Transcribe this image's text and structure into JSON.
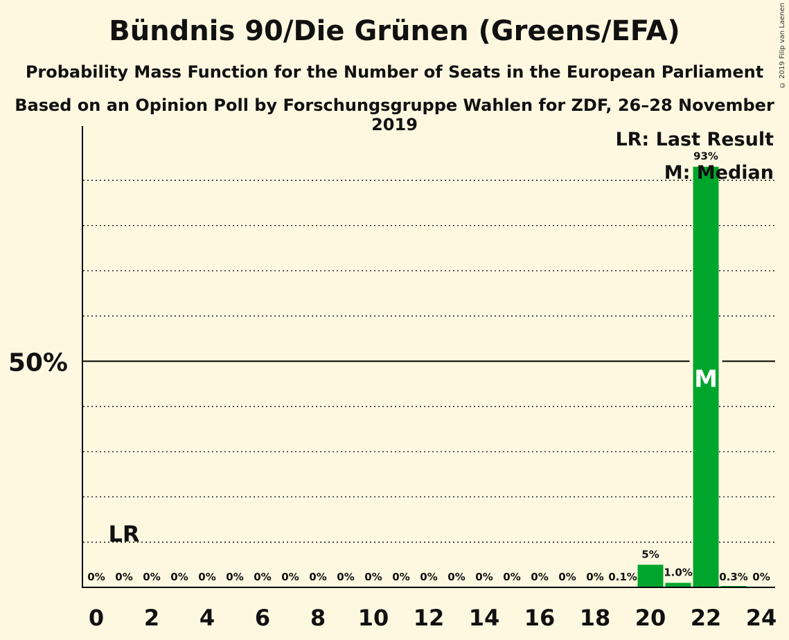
{
  "title": "Bündnis 90/Die Grünen (Greens/EFA)",
  "subtitle": "Probability Mass Function for the Number of Seats in the European Parliament",
  "subtitle2": "Based on an Opinion Poll by Forschungsgruppe Wahlen for ZDF, 26–28 November 2019",
  "copyright": "© 2019 Filip van Laenen",
  "legend": {
    "last_result": "LR: Last Result",
    "median": "M: Median"
  },
  "colors": {
    "bar": "#00a62c",
    "background": "#fff8e1",
    "axis": "#000000"
  },
  "chart_data": {
    "type": "bar",
    "x": [
      0,
      1,
      2,
      3,
      4,
      5,
      6,
      7,
      8,
      9,
      10,
      11,
      12,
      13,
      14,
      15,
      16,
      17,
      18,
      19,
      20,
      21,
      22,
      23,
      24
    ],
    "values": [
      0,
      0,
      0,
      0,
      0,
      0,
      0,
      0,
      0,
      0,
      0,
      0,
      0,
      0,
      0,
      0,
      0,
      0,
      0,
      0.1,
      5,
      1.0,
      93,
      0.3,
      0
    ],
    "labels": [
      "0%",
      "0%",
      "0%",
      "0%",
      "0%",
      "0%",
      "0%",
      "0%",
      "0%",
      "0%",
      "0%",
      "0%",
      "0%",
      "0%",
      "0%",
      "0%",
      "0%",
      "0%",
      "0%",
      "0.1%",
      "5%",
      "1.0%",
      "93%",
      "0.3%",
      "0%"
    ],
    "x_ticks": [
      "0",
      "2",
      "4",
      "6",
      "8",
      "10",
      "12",
      "14",
      "16",
      "18",
      "20",
      "22",
      "24"
    ],
    "y_tick_label": "50%",
    "ylim": [
      0,
      102
    ],
    "grid": "dotted every 10%",
    "last_result": 1,
    "last_result_marker": "LR",
    "median": 22,
    "median_marker": "M",
    "legend_placement": "top-right"
  }
}
